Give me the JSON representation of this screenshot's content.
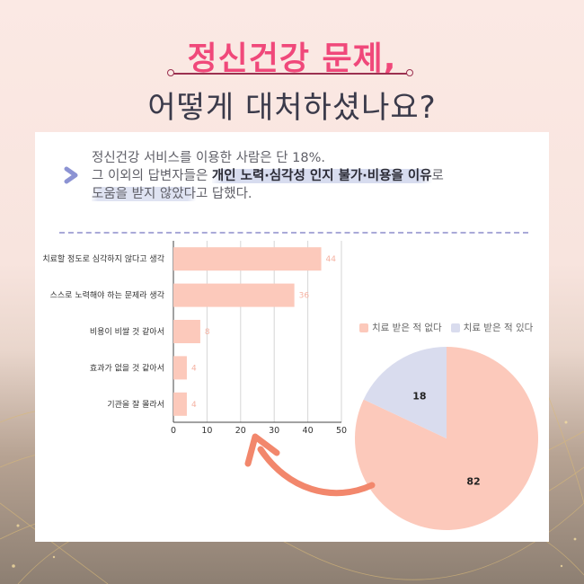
{
  "header": {
    "title_line1": "정신건강 문제,",
    "title_line2": "어떻게 대처하셨나요?"
  },
  "summary": {
    "line1": "정신건강 서비스를 이용한 사람은 단 18%.",
    "line2_pre": "그 이외의 답변자들은 ",
    "line2_highlight": "개인 노력·심각성 인지 불가·비용을 이유",
    "line2_post": "로",
    "line3_highlight": "도움을 받지 않았다",
    "line3_post": "고 답했다."
  },
  "icons": {
    "bullet": "chevron-right-icon",
    "pointer": "curved-arrow-icon"
  },
  "colors": {
    "accent": "#f0487a",
    "bar": "#fcc9bb",
    "pie_main": "#fcc9bb",
    "pie_minor": "#d9dcee"
  },
  "chart_data": [
    {
      "type": "bar",
      "orientation": "horizontal",
      "categories": [
        "치료할 정도로 심각하지 않다고 생각",
        "스스로 노력해야 하는 문제라 생각",
        "비용이 비쌀 것 같아서",
        "효과가 없을 것 같아서",
        "기관을 잘 몰라서"
      ],
      "values": [
        44,
        36,
        8,
        4,
        4
      ],
      "xlim": [
        0,
        50
      ],
      "xticks": [
        "0",
        "10",
        "20",
        "30",
        "40",
        "50"
      ],
      "grid": true,
      "color": "#fcc9bb"
    },
    {
      "type": "pie",
      "labels": [
        "치료 받은 적 없다",
        "치료 받은 적 있다"
      ],
      "values": [
        82,
        18
      ],
      "colors": [
        "#fcc9bb",
        "#d9dcee"
      ],
      "legend": "top"
    }
  ]
}
